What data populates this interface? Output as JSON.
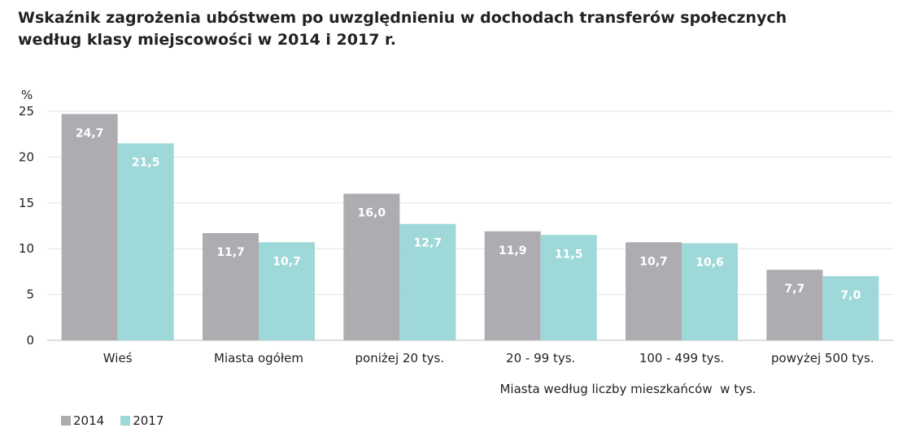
{
  "chart_data": {
    "type": "bar",
    "title_lines": [
      "Wskaźnik zagrożenia ubóstwem po uwzględnieniu w dochodach transferów społecznych",
      "według klasy miejscowości w 2014 i 2017 r."
    ],
    "ylabel": "%",
    "xlabel": "Miasta według liczby mieszkańców  w tys.",
    "ylim": [
      0,
      25
    ],
    "yticks": [
      0,
      5,
      10,
      15,
      20,
      25
    ],
    "grid": true,
    "legend_position": "bottom-left",
    "categories": [
      "Wieś",
      "Miasta ogółem",
      "poniżej 20 tys.",
      "20 - 99 tys.",
      "100 - 499 tys.",
      "powyżej 500 tys."
    ],
    "series": [
      {
        "name": "2014",
        "color": "#aeacb1",
        "values": [
          24.7,
          11.7,
          16.0,
          11.9,
          10.7,
          7.7
        ],
        "labels": [
          "24,7",
          "11,7",
          "16,0",
          "11,9",
          "10,7",
          "7,7"
        ]
      },
      {
        "name": "2017",
        "color": "#9fd8d8",
        "values": [
          21.5,
          10.7,
          12.7,
          11.5,
          10.6,
          7.0
        ],
        "labels": [
          "21,5",
          "10,7",
          "12,7",
          "11,5",
          "10,6",
          "7,0"
        ]
      }
    ]
  }
}
